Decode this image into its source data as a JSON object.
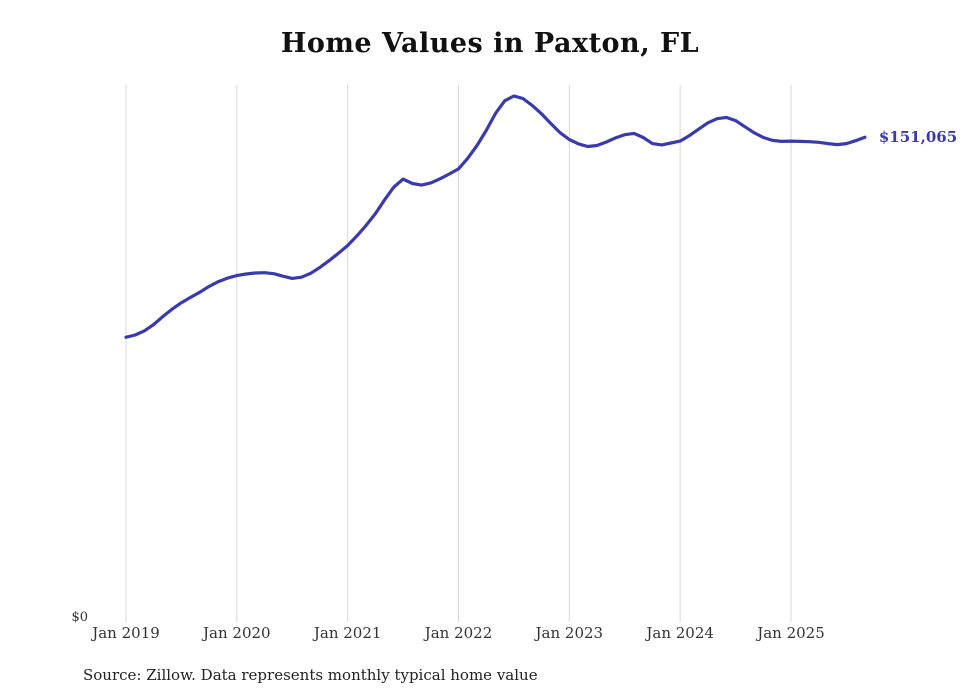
{
  "chart": {
    "title": "Home Values in Paxton, FL",
    "y_zero_label": "$0",
    "end_label": "$151,065",
    "source": "Source: Zillow. Data represents monthly typical home value"
  },
  "chart_data": {
    "type": "line",
    "title": "Home Values in Paxton, FL",
    "x_start": "2019-01",
    "x_end": "2025-09",
    "x_ticks": [
      "Jan 2019",
      "Jan 2020",
      "Jan 2021",
      "Jan 2022",
      "Jan 2023",
      "Jan 2024",
      "Jan 2025"
    ],
    "ylim": [
      0,
      170000
    ],
    "y_axis_labels": [
      "$0"
    ],
    "grid": "vertical-only",
    "legend": "none",
    "end_value": 151065,
    "end_value_label": "$151,065",
    "line_color": "#3a3ab0",
    "grid_color": "#d8d8d8",
    "text_color": "#333333",
    "series": [
      {
        "name": "Typical home value (monthly)",
        "values": [
          88500,
          89200,
          90500,
          92500,
          95000,
          97300,
          99300,
          101000,
          102600,
          104400,
          105900,
          107000,
          107800,
          108300,
          108600,
          108700,
          108400,
          107600,
          106900,
          107300,
          108500,
          110400,
          112500,
          114800,
          117200,
          120200,
          123500,
          127200,
          131500,
          135500,
          138000,
          136600,
          136100,
          136800,
          138100,
          139600,
          141200,
          144500,
          148500,
          153200,
          158500,
          162500,
          164000,
          163200,
          161000,
          158400,
          155400,
          152500,
          150400,
          149000,
          148200,
          148500,
          149600,
          150900,
          151900,
          152300,
          151000,
          149100,
          148700,
          149300,
          149900,
          151600,
          153600,
          155600,
          156900,
          157300,
          156300,
          154400,
          152500,
          151000,
          150100,
          149800,
          149900,
          149800,
          149700,
          149500,
          149100,
          148800,
          149100,
          150000,
          151065
        ]
      }
    ]
  }
}
